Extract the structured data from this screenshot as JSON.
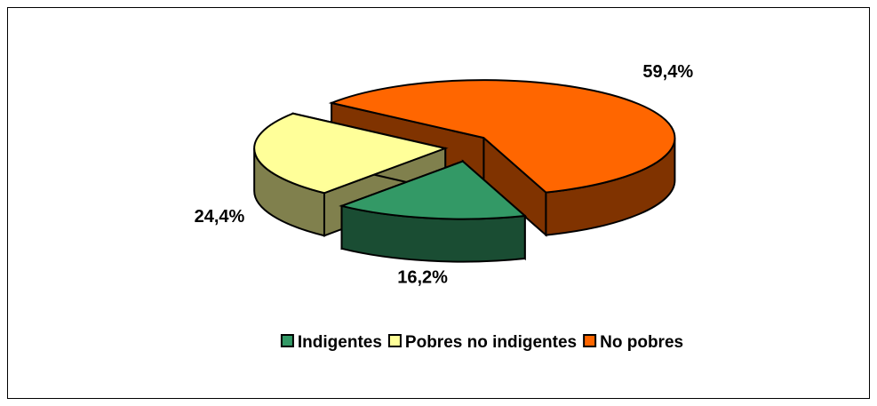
{
  "chart_data": {
    "type": "pie3d",
    "categories": [
      "Indigentes",
      "Pobres no indigentes",
      "No pobres"
    ],
    "values": [
      16.2,
      24.4,
      59.4
    ],
    "value_labels": [
      "16,2%",
      "24,4%",
      "59,4%"
    ],
    "colors": [
      "#339966",
      "#ffff99",
      "#ff6600"
    ],
    "legend": "bottom"
  }
}
